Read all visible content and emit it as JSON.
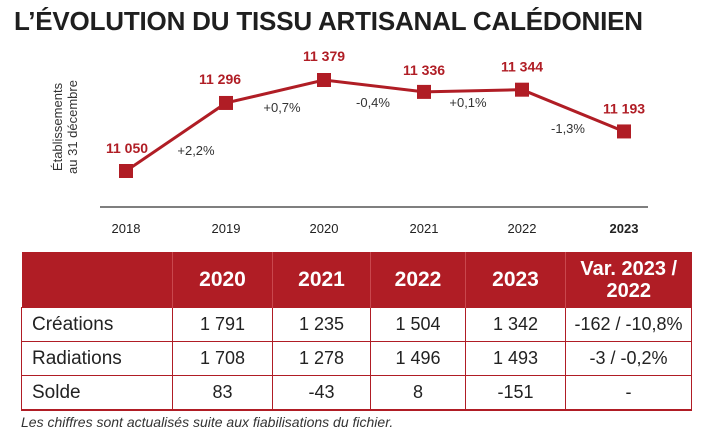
{
  "title": "L’ÉVOLUTION DU TISSU ARTISANAL CALÉDONIEN",
  "chart_data": {
    "type": "line",
    "title": "L’ÉVOLUTION DU TISSU ARTISANAL CALÉDONIEN",
    "ylabel_line1": "Établissements",
    "ylabel_line2": "au 31 décembre",
    "xlabel": "",
    "categories": [
      "2018",
      "2019",
      "2020",
      "2021",
      "2022",
      "2023"
    ],
    "values": [
      11050,
      11296,
      11379,
      11336,
      11344,
      11193
    ],
    "value_labels": [
      "11 050",
      "11 296",
      "11 379",
      "11 336",
      "11 344",
      "11 193"
    ],
    "changes": [
      "+2,2%",
      "+0,7%",
      "-0,4%",
      "+0,1%",
      "-1,3%"
    ],
    "highlight_category": "2023",
    "ylim": [
      11050,
      11379
    ],
    "color": "#b01d25",
    "grid": false
  },
  "table": {
    "headers": [
      "",
      "2020",
      "2021",
      "2022",
      "2023",
      "Var. 2023 / 2022"
    ],
    "rows": [
      {
        "label": "Créations",
        "cells": [
          "1 791",
          "1 235",
          "1 504",
          "1 342",
          "-162 / -10,8%"
        ]
      },
      {
        "label": "Radiations",
        "cells": [
          "1 708",
          "1 278",
          "1 496",
          "1 493",
          "-3 / -0,2%"
        ]
      },
      {
        "label": "Solde",
        "cells": [
          "83",
          "-43",
          "8",
          "-151",
          "-"
        ]
      }
    ]
  },
  "note": "Les chiffres sont actualisés suite aux fiabilisations du fichier."
}
